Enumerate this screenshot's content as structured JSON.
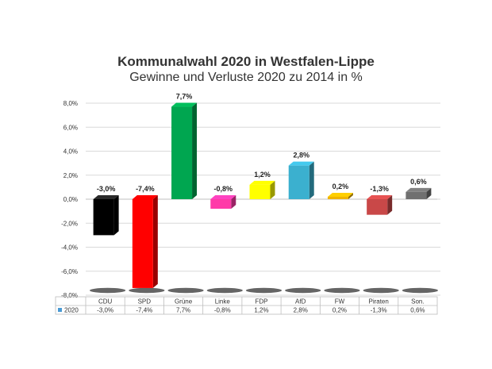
{
  "chart_data": {
    "type": "bar",
    "title": "Kommunalwahl 2020 in Westfalen-Lippe",
    "subtitle": "Gewinne und Verluste 2020 zu 2014 in %",
    "categories": [
      "CDU",
      "SPD",
      "Grüne",
      "Linke",
      "FDP",
      "AfD",
      "FW",
      "Piraten",
      "Son."
    ],
    "series": [
      {
        "name": "2020",
        "values": [
          -3.0,
          -7.4,
          7.7,
          -0.8,
          1.2,
          2.8,
          0.2,
          -1.3,
          0.6
        ],
        "labels": [
          "-3,0%",
          "-7,4%",
          "7,7%",
          "-0,8%",
          "1,2%",
          "2,8%",
          "0,2%",
          "-1,3%",
          "0,6%"
        ]
      }
    ],
    "colors": [
      "#000000",
      "#ff0000",
      "#00a650",
      "#ff3aa8",
      "#ffff00",
      "#3bb0cf",
      "#f0b400",
      "#c94848",
      "#707070"
    ],
    "legend_color": "#4a9ad4",
    "ylim": [
      -8,
      8
    ],
    "yticks": [
      8,
      6,
      4,
      2,
      0,
      -2,
      -4,
      -6,
      -8
    ],
    "ytick_labels": [
      "8,0%",
      "6,0%",
      "4,0%",
      "2,0%",
      "0,0%",
      "-2,0%",
      "-4,0%",
      "-6,0%",
      "-8,0%"
    ],
    "grid": true,
    "legend": "data-table-below"
  }
}
